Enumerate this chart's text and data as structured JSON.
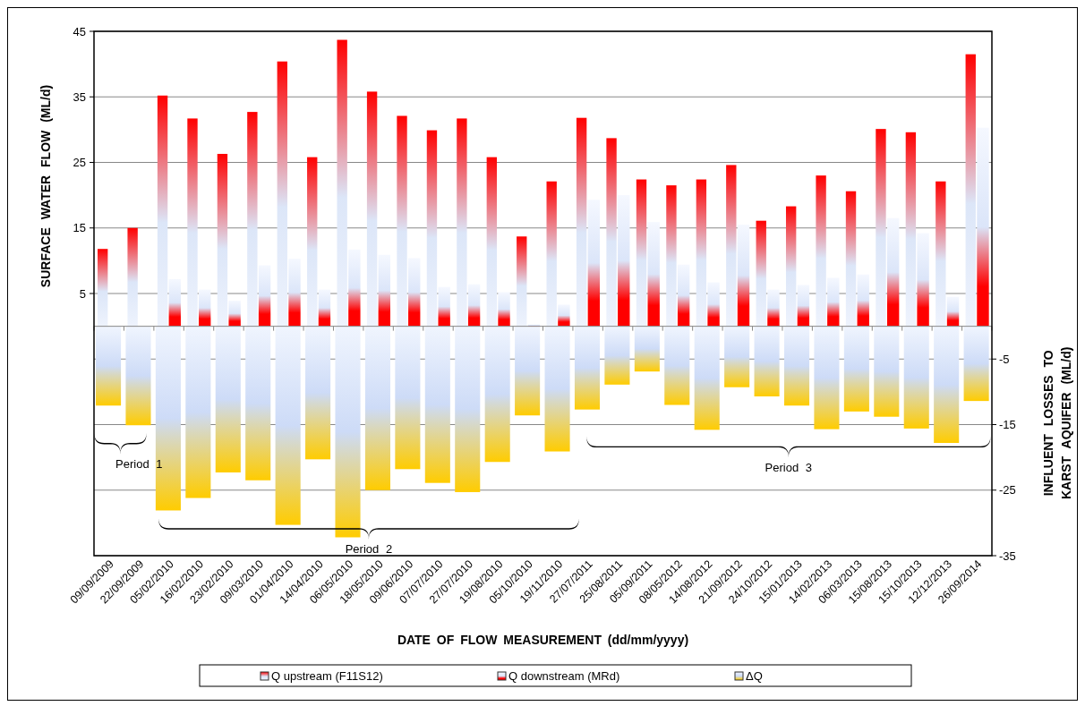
{
  "chart_data": {
    "type": "bar",
    "xlabel": "DATE OF FLOW MEASUREMENT (dd/mm/yyyy)",
    "ylabel": "SURFACE WATER FLOW (ML/d)",
    "y2label": "INFLUENT LOSSES TO KARST AQUIFER (ML/d)",
    "categories": [
      "09/09/2009",
      "22/09/2009",
      "05/02/2010",
      "16/02/2010",
      "23/02/2010",
      "09/03/2010",
      "01/04/2010",
      "14/04/2010",
      "06/05/2010",
      "18/05/2010",
      "09/06/2010",
      "07/07/2010",
      "27/07/2010",
      "19/08/2010",
      "05/10/2010",
      "19/11/2010",
      "27/07/2011",
      "25/08/2011",
      "05/09/2011",
      "08/05/2012",
      "14/08/2012",
      "21/09/2012",
      "24/10/2012",
      "15/01/2013",
      "14/02/2013",
      "06/03/2013",
      "15/08/2013",
      "15/10/2013",
      "12/12/2013",
      "26/09/2014"
    ],
    "series": [
      {
        "name": "Q upstream (F11S12)",
        "color": "#ff0000",
        "values": [
          11.8,
          15.0,
          35.2,
          31.7,
          26.3,
          32.7,
          40.4,
          25.8,
          43.7,
          35.8,
          32.1,
          29.9,
          31.7,
          25.8,
          13.7,
          22.1,
          31.8,
          28.7,
          22.4,
          21.5,
          22.4,
          24.6,
          16.1,
          18.3,
          23.0,
          20.6,
          30.1,
          29.6,
          22.1,
          41.5
        ]
      },
      {
        "name": "Q downstream (MRd)",
        "color": "#dbe5f9",
        "values": [
          null,
          null,
          7.2,
          5.6,
          3.9,
          9.3,
          10.3,
          5.6,
          11.7,
          10.9,
          10.4,
          6.0,
          6.4,
          5.2,
          0.3,
          3.3,
          19.3,
          20.0,
          15.9,
          9.4,
          6.7,
          15.5,
          5.6,
          6.3,
          7.4,
          7.9,
          16.5,
          14.2,
          4.5,
          30.3
        ]
      },
      {
        "name": "ΔQ",
        "color": "#ffcc00",
        "axis": "y2",
        "values": [
          -12.1,
          -15.1,
          -28.1,
          -26.2,
          -22.3,
          -23.5,
          -30.3,
          -20.3,
          -32.2,
          -25.0,
          -21.8,
          -23.9,
          -25.3,
          -20.7,
          -13.6,
          -19.1,
          -12.7,
          -8.9,
          -6.9,
          -12.0,
          -15.8,
          -9.3,
          -10.7,
          -12.1,
          -15.7,
          -13.0,
          -13.8,
          -15.6,
          -17.8,
          -11.4
        ]
      }
    ],
    "ylim": [
      -35,
      45
    ],
    "yticks": [
      5,
      15,
      25,
      35,
      45
    ],
    "y2lim": [
      -35,
      45
    ],
    "y2ticks": [
      -5,
      -15,
      -25,
      -35
    ],
    "grid": true,
    "legend": "bottom",
    "annotations": [
      "Period 1",
      "Period 2",
      "Period 3"
    ]
  }
}
